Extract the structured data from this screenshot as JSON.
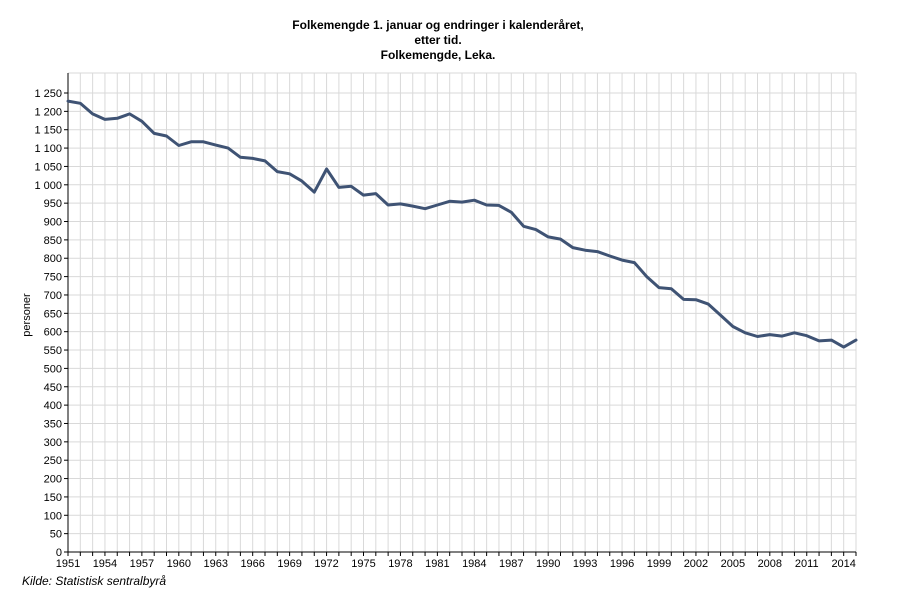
{
  "title_lines": [
    "Folkemengde 1. januar og endringer i kalenderåret,",
    "etter tid.",
    "Folkemengde, Leka."
  ],
  "source": "Kilde: Statistisk sentralbyrå",
  "colors": {
    "line": "#3f5374",
    "grid": "#d9d9d9",
    "axis": "#000000"
  },
  "chart_data": {
    "type": "line",
    "title": "Folkemengde 1. januar og endringer i kalenderåret, etter tid. Folkemengde, Leka.",
    "xlabel": "",
    "ylabel": "personer",
    "xlim": [
      1951,
      2015
    ],
    "ylim": [
      0,
      1250
    ],
    "grid": true,
    "x_ticks": [
      1951,
      1954,
      1957,
      1960,
      1963,
      1966,
      1969,
      1972,
      1975,
      1978,
      1981,
      1984,
      1987,
      1990,
      1993,
      1996,
      1999,
      2002,
      2005,
      2008,
      2011,
      2014
    ],
    "y_ticks": [
      0,
      50,
      100,
      150,
      200,
      250,
      300,
      350,
      400,
      450,
      500,
      550,
      600,
      650,
      700,
      750,
      800,
      850,
      900,
      950,
      1000,
      1050,
      1100,
      1150,
      1200,
      1250
    ],
    "y_tick_labels": [
      "0",
      "50",
      "100",
      "150",
      "200",
      "250",
      "300",
      "350",
      "400",
      "450",
      "500",
      "550",
      "600",
      "650",
      "700",
      "750",
      "800",
      "850",
      "900",
      "950",
      "1 000",
      "1 050",
      "1 100",
      "1 150",
      "1 200",
      "1 250"
    ],
    "series": [
      {
        "x": [
          1951,
          1952,
          1953,
          1954,
          1955,
          1956,
          1957,
          1958,
          1959,
          1960,
          1961,
          1962,
          1963,
          1964,
          1965,
          1966,
          1967,
          1968,
          1969,
          1970,
          1971,
          1972,
          1973,
          1974,
          1975,
          1976,
          1977,
          1978,
          1979,
          1980,
          1981,
          1982,
          1983,
          1984,
          1985,
          1986,
          1987,
          1988,
          1989,
          1990,
          1991,
          1992,
          1993,
          1994,
          1995,
          1996,
          1997,
          1998,
          1999,
          2000,
          2001,
          2002,
          2003,
          2004,
          2005,
          2006,
          2007,
          2008,
          2009,
          2010,
          2011,
          2012,
          2013,
          2014,
          2015
        ],
        "values": [
          1228,
          1222,
          1193,
          1178,
          1181,
          1193,
          1173,
          1140,
          1133,
          1107,
          1117,
          1117,
          1108,
          1100,
          1075,
          1072,
          1065,
          1036,
          1030,
          1010,
          980,
          1043,
          993,
          996,
          972,
          976,
          945,
          948,
          942,
          935,
          945,
          955,
          953,
          958,
          945,
          944,
          925,
          887,
          878,
          858,
          852,
          829,
          822,
          818,
          806,
          795,
          788,
          750,
          720,
          717,
          688,
          687,
          675,
          645,
          614,
          597,
          587,
          592,
          588,
          597,
          589,
          575,
          577,
          558,
          577
        ]
      }
    ]
  }
}
